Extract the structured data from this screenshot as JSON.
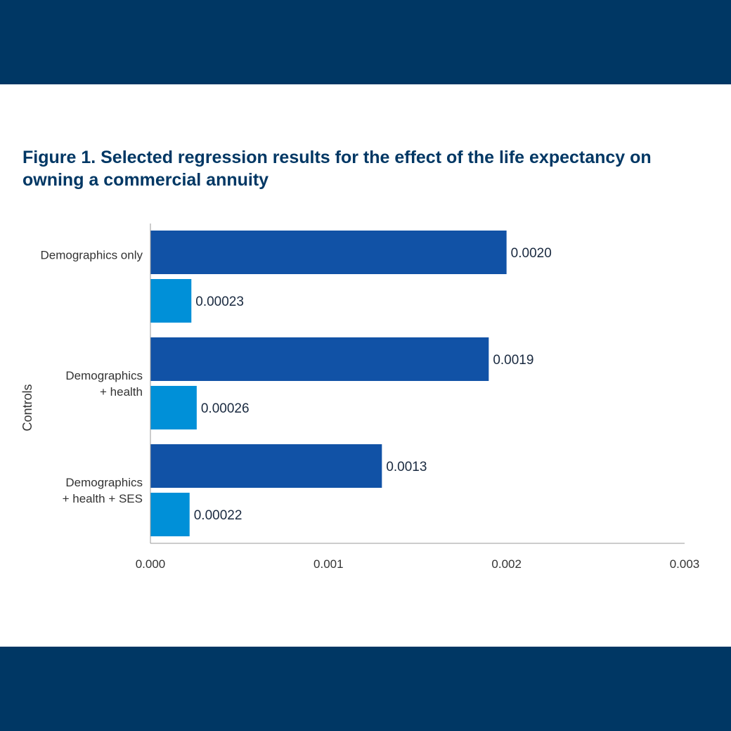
{
  "colors": {
    "band": "#003764",
    "title": "#003764",
    "series_dark": "#1152A6",
    "series_light": "#0090D8",
    "axis": "#999999",
    "text": "#333333",
    "value_text": "#1a2a40"
  },
  "chart_data": {
    "type": "bar",
    "orientation": "horizontal",
    "title": "Figure 1. Selected regression results for the effect of the life expectancy on owning a commercial annuity",
    "ylabel": "Controls",
    "xlabel": "",
    "categories": [
      [
        "Demographics only"
      ],
      [
        "Demographics",
        "+ health"
      ],
      [
        "Demographics",
        "+ health + SES"
      ]
    ],
    "series": [
      {
        "values": [
          0.002,
          0.0019,
          0.0013
        ],
        "labels": [
          "0.0020",
          "0.0019",
          "0.0013"
        ],
        "color": "#1152A6"
      },
      {
        "values": [
          0.00023,
          0.00026,
          0.00022
        ],
        "labels": [
          "0.00023",
          "0.00026",
          "0.00022"
        ],
        "color": "#0090D8"
      }
    ],
    "xlim": [
      0,
      0.003
    ],
    "xticks": [
      0,
      0.001,
      0.002,
      0.003
    ],
    "xtick_labels": [
      "0.000",
      "0.001",
      "0.002",
      "0.003"
    ],
    "grid": false,
    "legend": "none"
  }
}
